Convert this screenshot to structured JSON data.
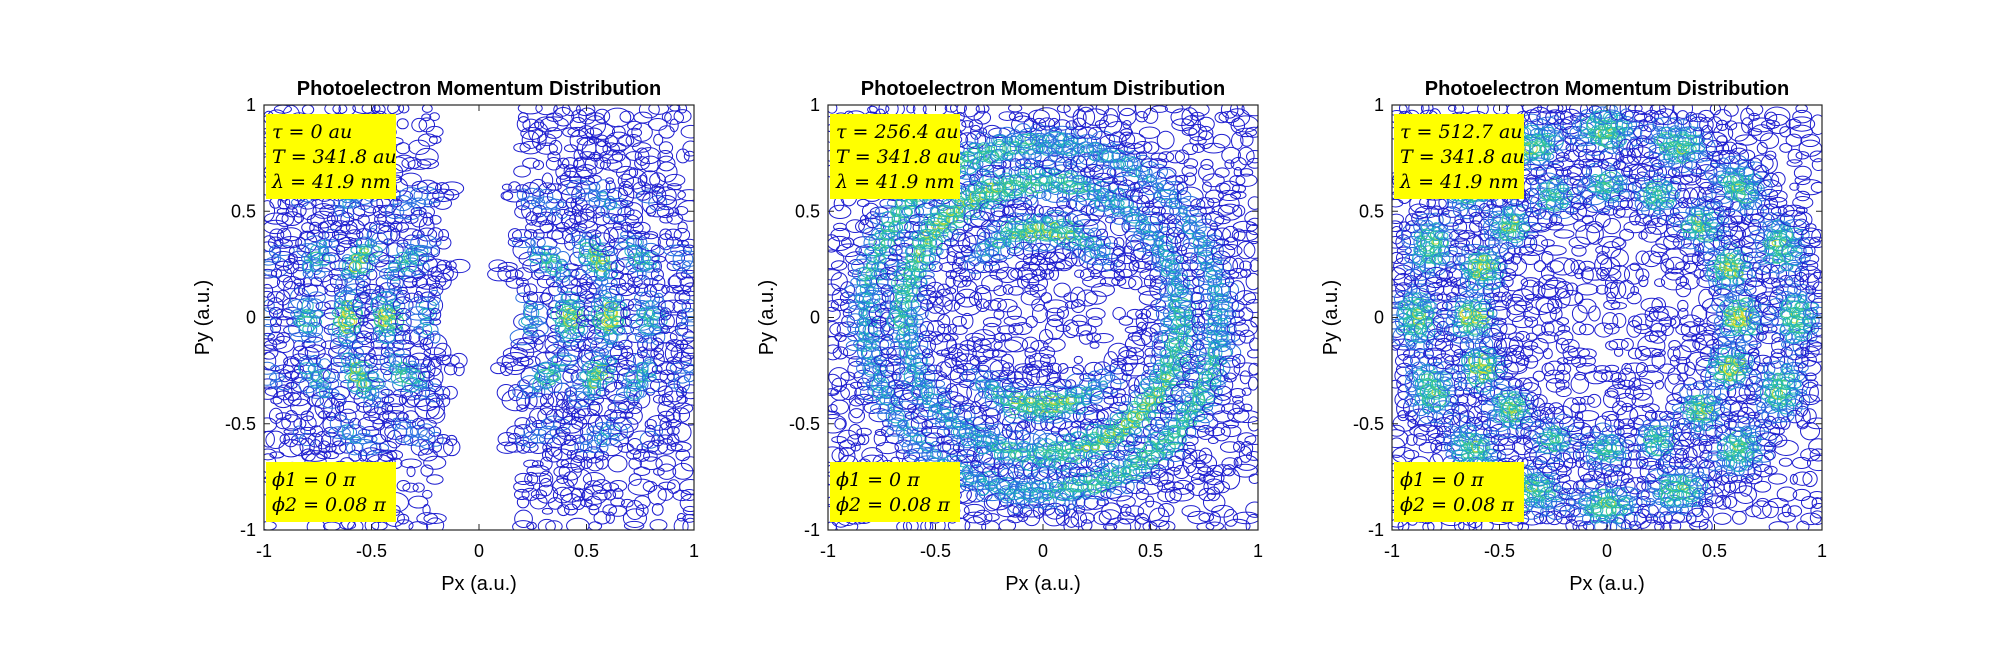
{
  "chart_data": [
    {
      "type": "contour",
      "title": "Photoelectron Momentum Distribution",
      "xlabel": "Px (a.u.)",
      "ylabel": "Py (a.u.)",
      "xlim": [
        -1,
        1
      ],
      "ylim": [
        -1,
        1
      ],
      "xticks": [
        -1,
        -0.5,
        0,
        0.5,
        1
      ],
      "yticks": [
        -1,
        -0.5,
        0,
        0.5,
        1
      ],
      "xtick_labels": [
        "-1",
        "-0.5",
        "0",
        "0.5",
        "1"
      ],
      "ytick_labels": [
        "-1",
        "-0.5",
        "0",
        "0.5",
        "1"
      ],
      "pattern": "split-lobes",
      "annotations_top": [
        "τ = 0 au",
        "T = 341.8 au",
        "λ = 41.9 nm"
      ],
      "annotations_bottom": [
        "ϕ1 = 0 π",
        "ϕ2 = 0.08 π"
      ],
      "colormap": [
        "#1f1fd0",
        "#2a6fe0",
        "#1fb0c0",
        "#3ec98a",
        "#b9d83a",
        "#f4e12a"
      ]
    },
    {
      "type": "contour",
      "title": "Photoelectron Momentum Distribution",
      "xlabel": "Px (a.u.)",
      "ylabel": "Py (a.u.)",
      "xlim": [
        -1,
        1
      ],
      "ylim": [
        -1,
        1
      ],
      "xticks": [
        -1,
        -0.5,
        0,
        0.5,
        1
      ],
      "yticks": [
        -1,
        -0.5,
        0,
        0.5,
        1
      ],
      "xtick_labels": [
        "-1",
        "-0.5",
        "0",
        "0.5",
        "1"
      ],
      "ytick_labels": [
        "-1",
        "-0.5",
        "0",
        "0.5",
        "1"
      ],
      "pattern": "ring-tilted",
      "annotations_top": [
        "τ = 256.4 au",
        "T = 341.8 au",
        "λ = 41.9 nm"
      ],
      "annotations_bottom": [
        "ϕ1 = 0 π",
        "ϕ2 = 0.08 π"
      ],
      "colormap": [
        "#1f1fd0",
        "#2a6fe0",
        "#1fb0c0",
        "#3ec98a",
        "#b9d83a",
        "#f4e12a"
      ]
    },
    {
      "type": "contour",
      "title": "Photoelectron Momentum Distribution",
      "xlabel": "Px (a.u.)",
      "ylabel": "Py (a.u.)",
      "xlim": [
        -1,
        1
      ],
      "ylim": [
        -1,
        1
      ],
      "xticks": [
        -1,
        -0.5,
        0,
        0.5,
        1
      ],
      "yticks": [
        -1,
        -0.5,
        0,
        0.5,
        1
      ],
      "xtick_labels": [
        "-1",
        "-0.5",
        "0",
        "0.5",
        "1"
      ],
      "ytick_labels": [
        "-1",
        "-0.5",
        "0",
        "0.5",
        "1"
      ],
      "pattern": "double-ring",
      "annotations_top": [
        "τ = 512.7 au",
        "T = 341.8 au",
        "λ = 41.9 nm"
      ],
      "annotations_bottom": [
        "ϕ1 = 0 π",
        "ϕ2 = 0.08 π"
      ],
      "colormap": [
        "#1f1fd0",
        "#2a6fe0",
        "#1fb0c0",
        "#3ec98a",
        "#b9d83a",
        "#f4e12a"
      ]
    }
  ]
}
